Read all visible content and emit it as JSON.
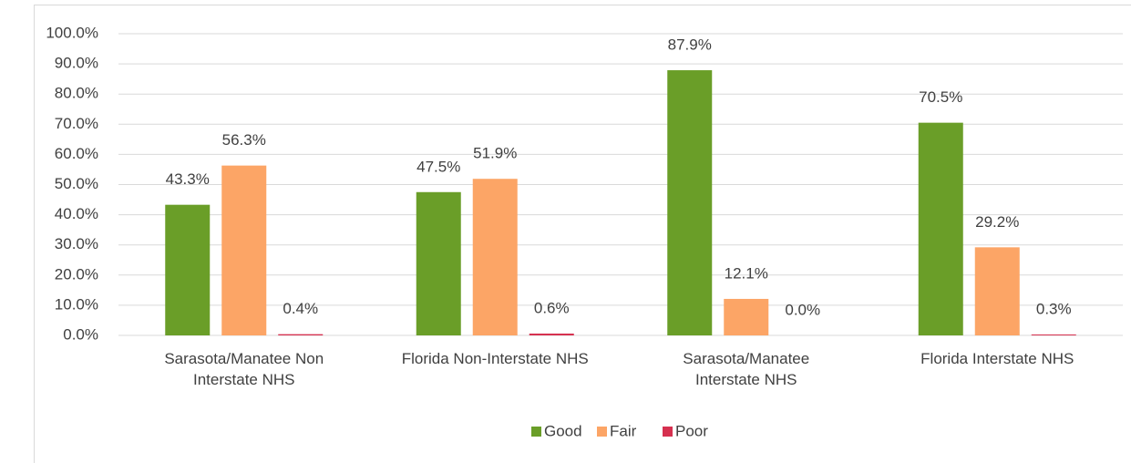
{
  "chart_data": {
    "type": "bar",
    "categories": [
      "Sarasota/Manatee Non\nInterstate NHS",
      "Florida Non-Interstate NHS",
      "Sarasota/Manatee\nInterstate NHS",
      "Florida Interstate NHS"
    ],
    "series": [
      {
        "name": "Good",
        "color": "#6a9e28",
        "values": [
          43.3,
          47.5,
          87.9,
          70.5
        ],
        "value_labels": [
          "43.3%",
          "47.5%",
          "87.9%",
          "70.5%"
        ]
      },
      {
        "name": "Fair",
        "color": "#fca566",
        "values": [
          56.3,
          51.9,
          12.1,
          29.2
        ],
        "value_labels": [
          "56.3%",
          "51.9%",
          "12.1%",
          "29.2%"
        ]
      },
      {
        "name": "Poor",
        "color": "#d6304f",
        "values": [
          0.4,
          0.6,
          0.0,
          0.3
        ],
        "value_labels": [
          "0.4%",
          "0.6%",
          "0.0%",
          "0.3%"
        ]
      }
    ],
    "ylim": [
      0,
      100
    ],
    "yticks": [
      {
        "value": 0,
        "label": "0.0%"
      },
      {
        "value": 10,
        "label": "10.0%"
      },
      {
        "value": 20,
        "label": "20.0%"
      },
      {
        "value": 30,
        "label": "30.0%"
      },
      {
        "value": 40,
        "label": "40.0%"
      },
      {
        "value": 50,
        "label": "50.0%"
      },
      {
        "value": 60,
        "label": "60.0%"
      },
      {
        "value": 70,
        "label": "70.0%"
      },
      {
        "value": 80,
        "label": "80.0%"
      },
      {
        "value": 90,
        "label": "90.0%"
      },
      {
        "value": 100,
        "label": "100.0%"
      }
    ],
    "grid": true,
    "legend": "bottom"
  }
}
